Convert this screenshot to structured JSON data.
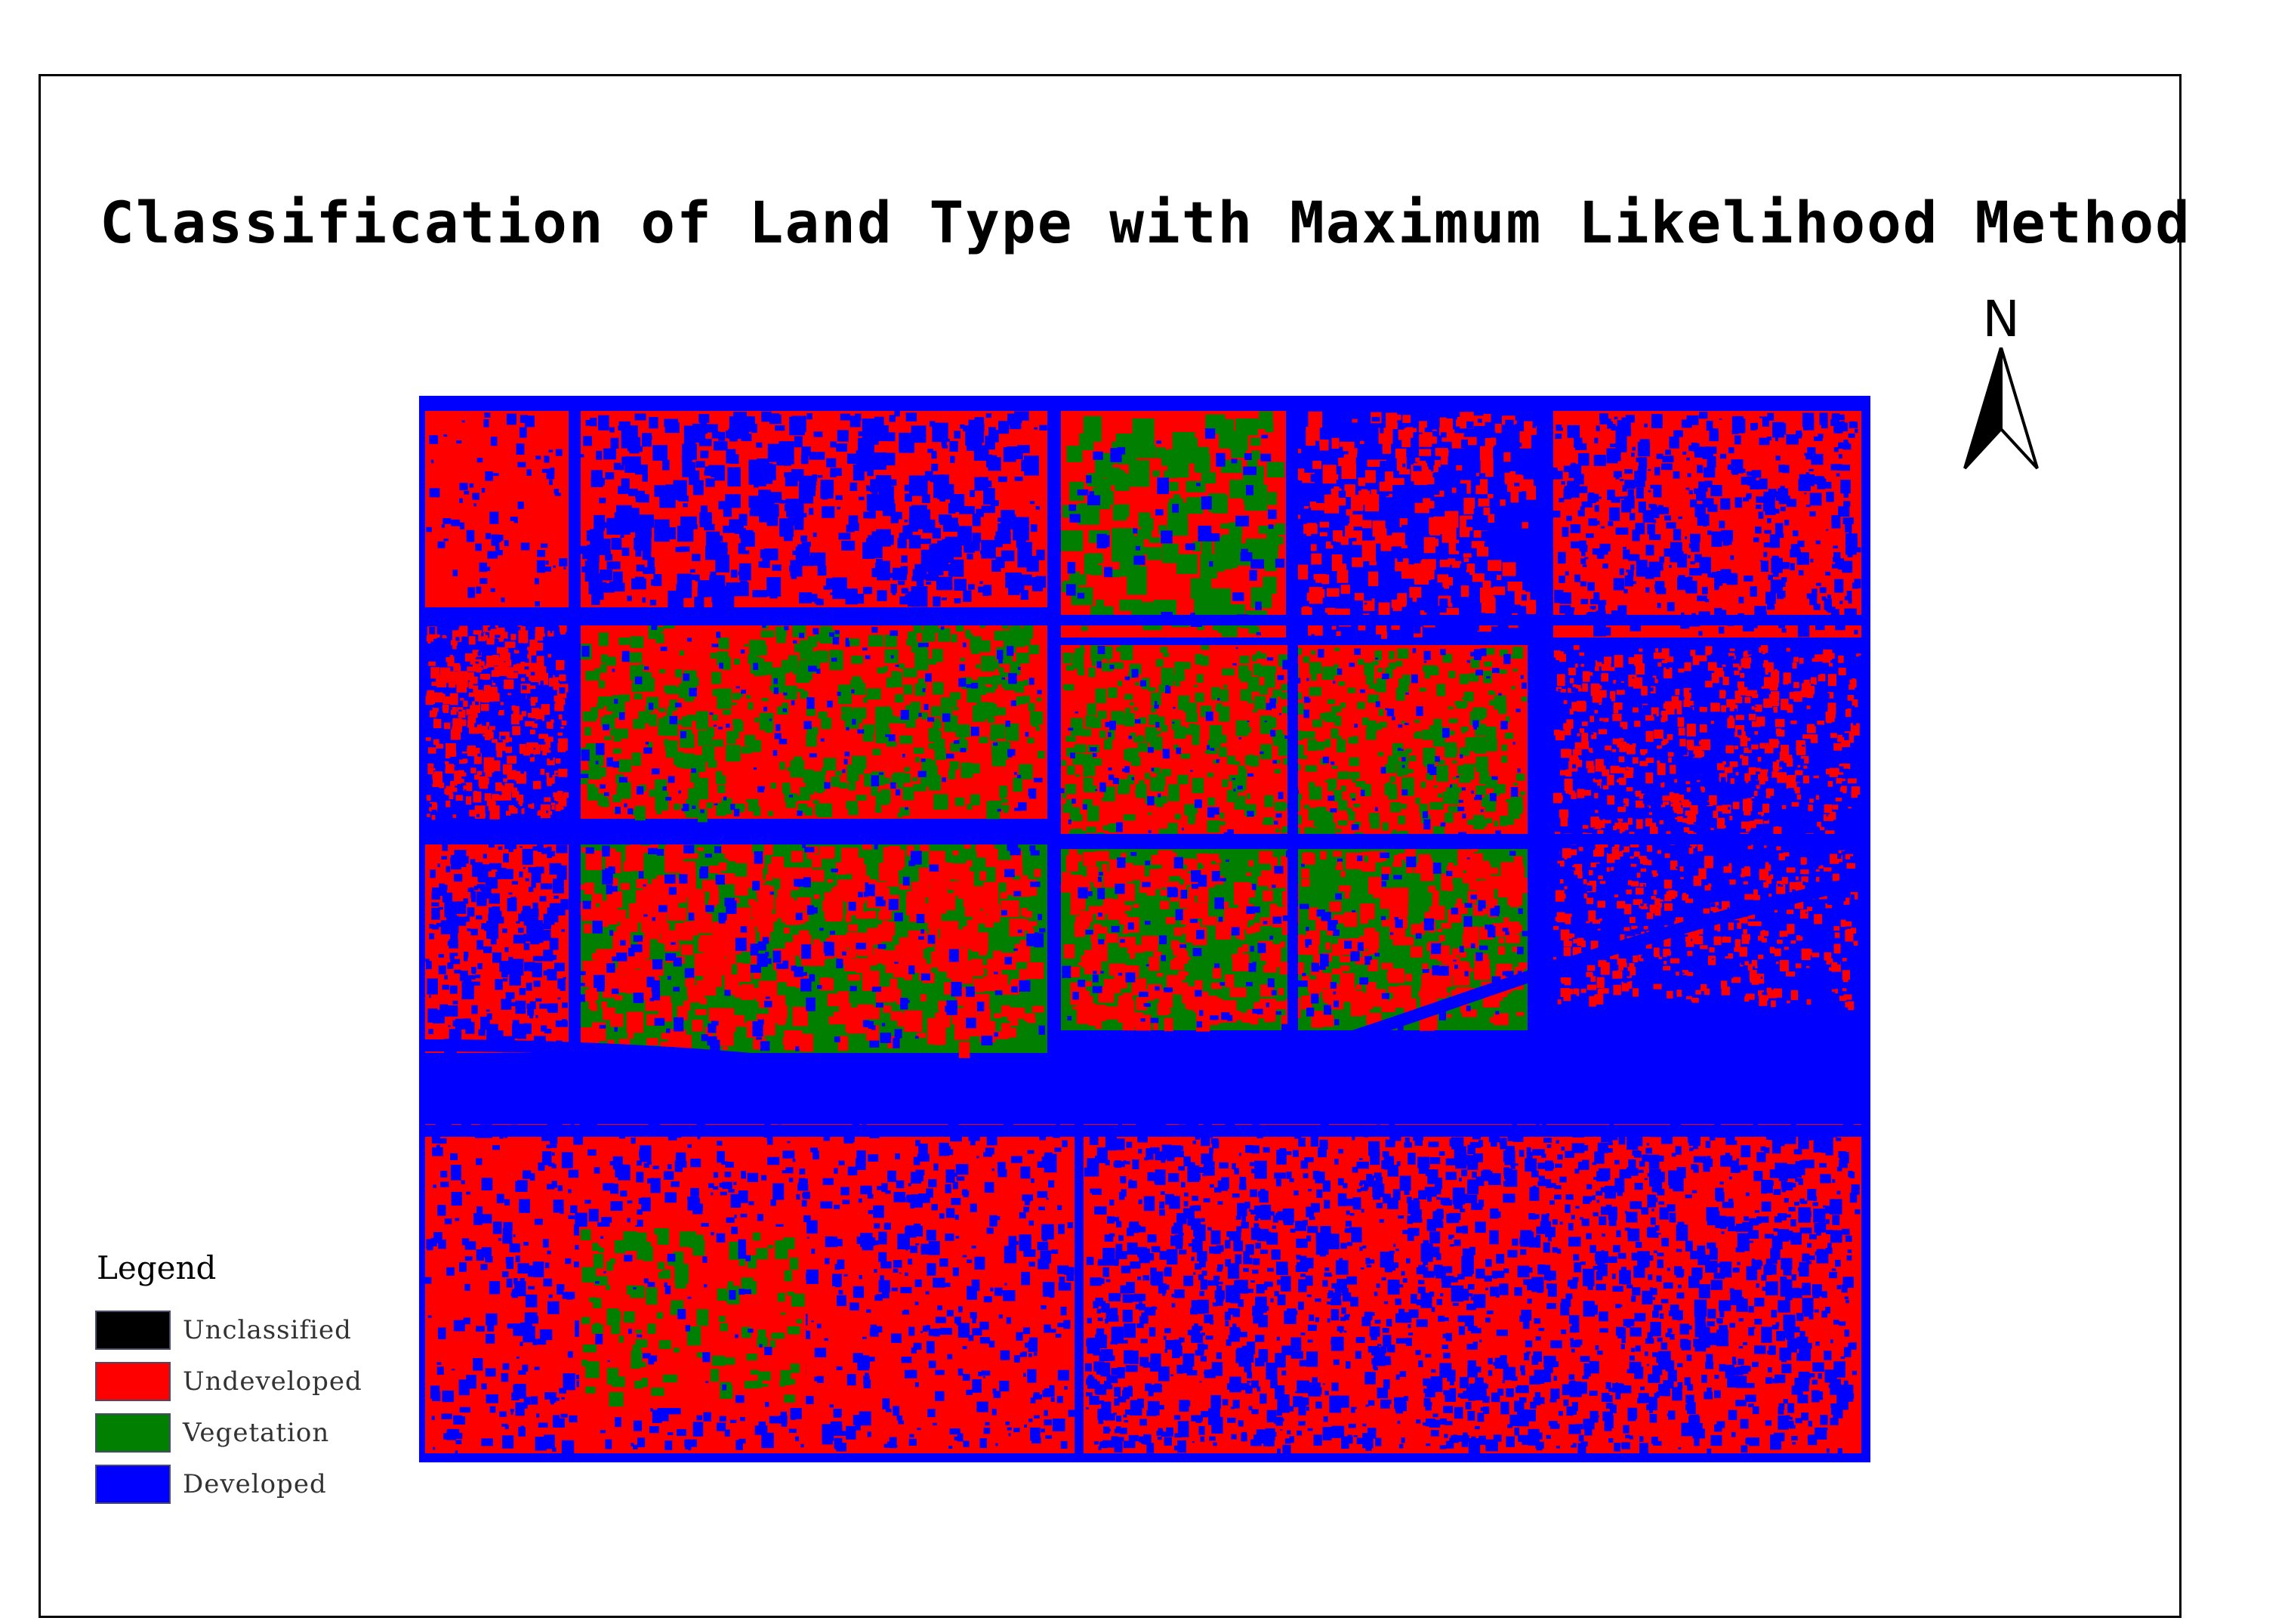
{
  "title": "Classification of Land Type with Maximum Likelihood Method",
  "north_arrow": {
    "label": "N",
    "icon": "north-arrow-icon"
  },
  "legend": {
    "title": "Legend",
    "items": [
      {
        "label": "Unclassified",
        "color": "#000000"
      },
      {
        "label": "Undeveloped",
        "color": "#ff0000"
      },
      {
        "label": "Vegetation",
        "color": "#007f00"
      },
      {
        "label": "Developed",
        "color": "#0000ff"
      }
    ]
  },
  "colors": {
    "undeveloped": "#ff0000",
    "vegetation": "#007f00",
    "developed": "#0000ff",
    "frame": "#000000"
  }
}
